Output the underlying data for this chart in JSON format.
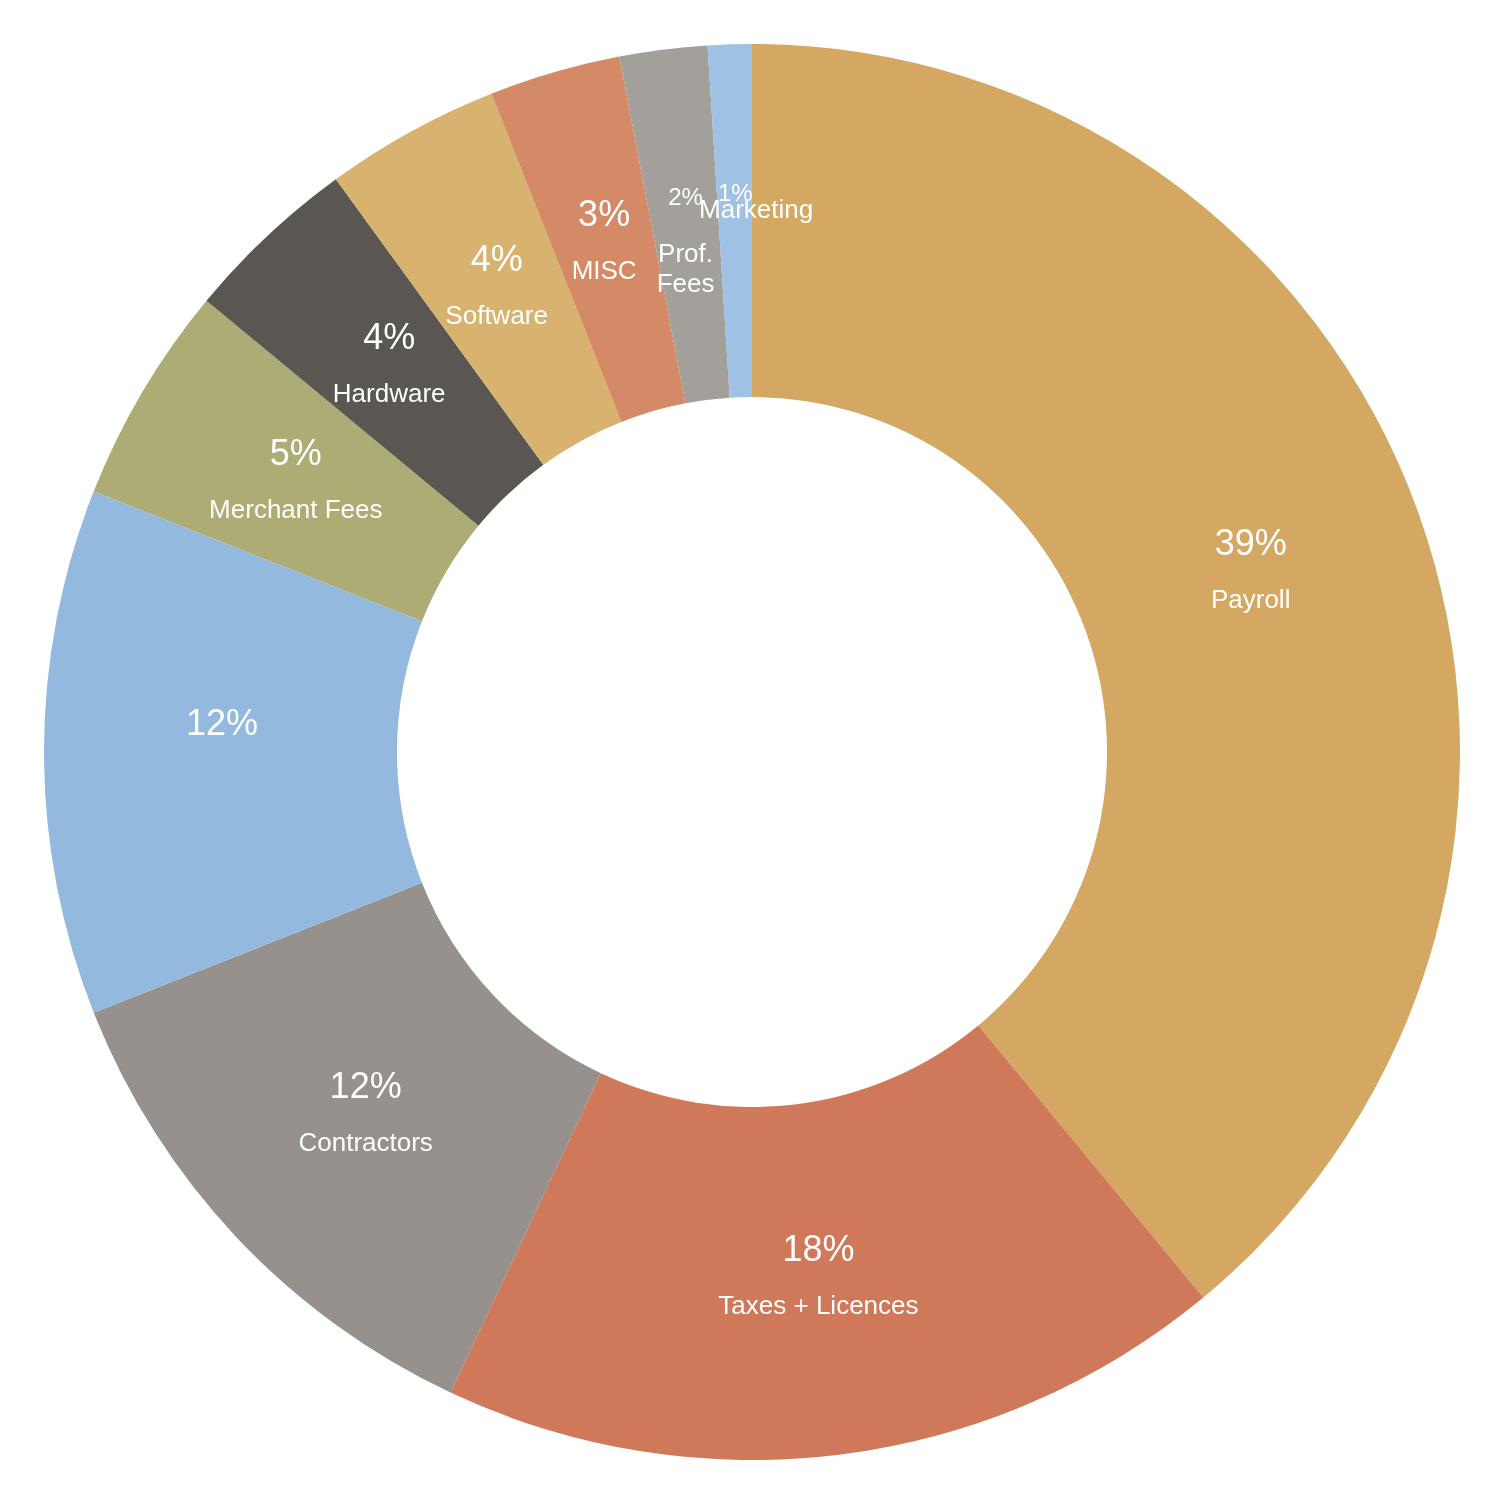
{
  "chart_data": {
    "type": "donut",
    "categories": [
      "Payroll",
      "Taxes + Licences",
      "Contractors",
      null,
      "Merchant Fees",
      "Hardware",
      "Software",
      "MISC",
      "Prof. Fees",
      "Marketing"
    ],
    "values": [
      39,
      18,
      12,
      12,
      5,
      4,
      4,
      3,
      2,
      1
    ],
    "value_labels": [
      "39%",
      "18%",
      "12%",
      "12%",
      "5%",
      "4%",
      "4%",
      "3%",
      "2%",
      "1%"
    ],
    "colors": [
      "#d4a862",
      "#cf795a",
      "#96918c",
      "#94b9de",
      "#adac75",
      "#5a5752",
      "#d8b36f",
      "#d58a67",
      "#a39f9a",
      "#9fc1e3"
    ]
  }
}
